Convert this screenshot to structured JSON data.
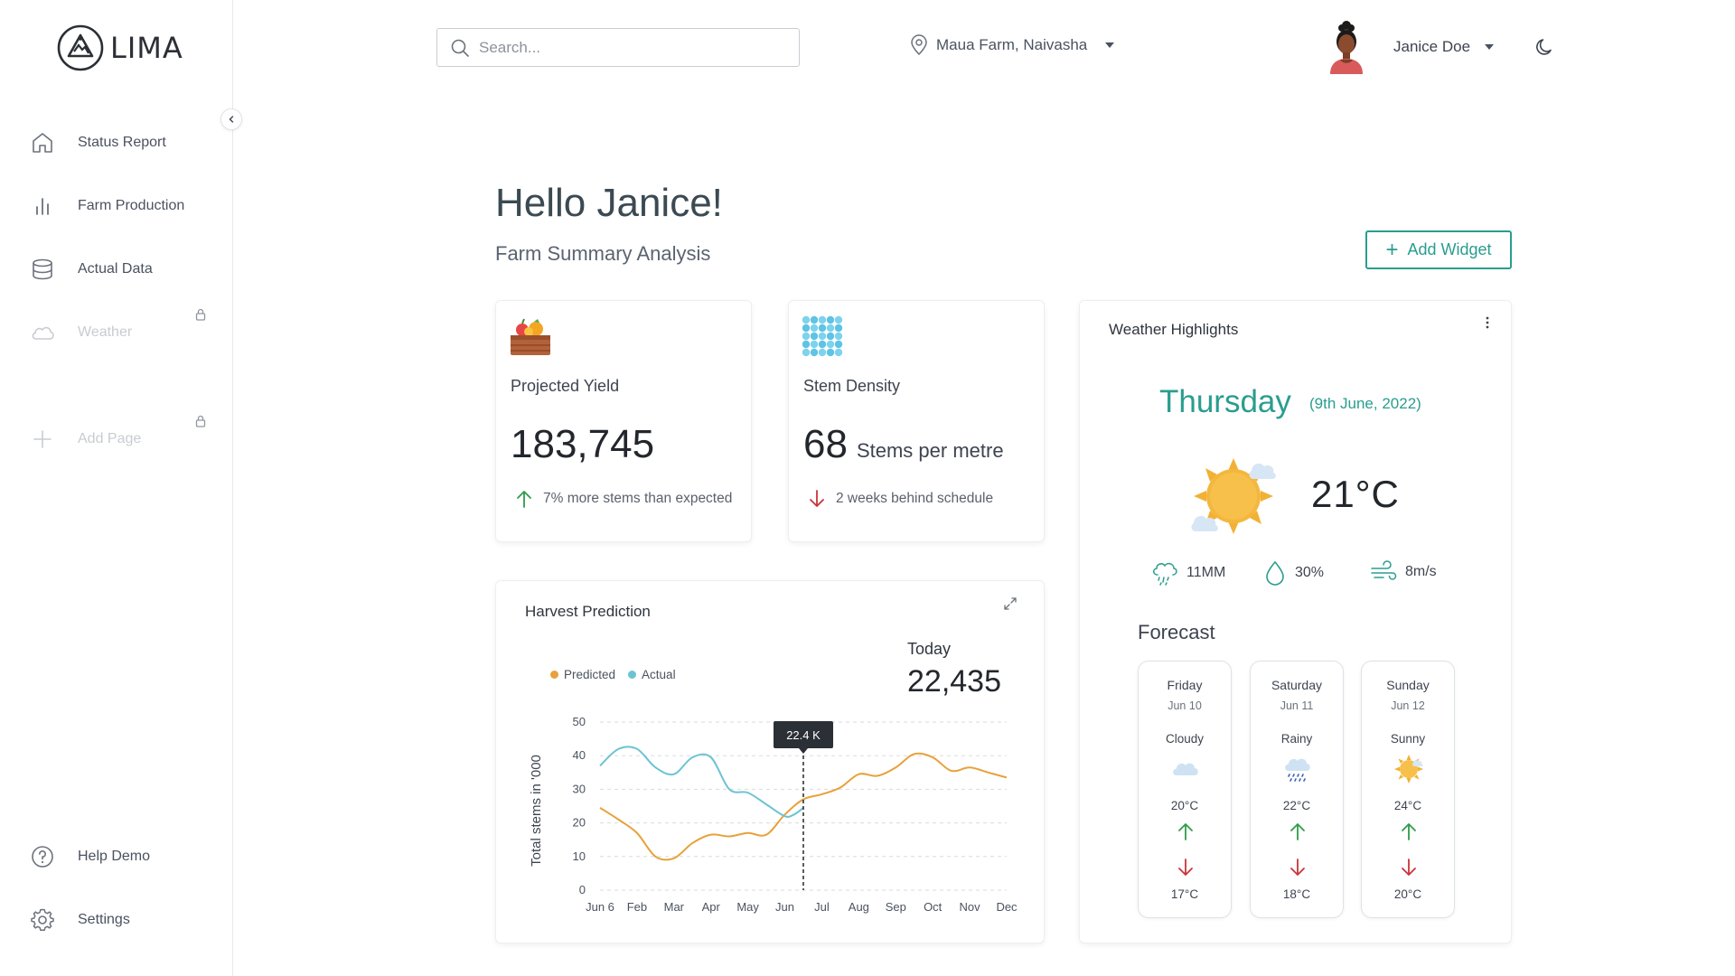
{
  "app": {
    "name": "LIMA"
  },
  "sidebar": {
    "items": [
      {
        "label": "Status Report",
        "icon": "home-icon",
        "locked": false
      },
      {
        "label": "Farm Production",
        "icon": "bar-chart-icon",
        "locked": false
      },
      {
        "label": "Actual Data",
        "icon": "database-icon",
        "locked": false
      },
      {
        "label": "Weather",
        "icon": "cloud-icon",
        "locked": true
      },
      {
        "label": "Add Page",
        "icon": "plus-icon",
        "locked": true
      }
    ],
    "bottom": [
      {
        "label": "Help Demo",
        "icon": "help-icon"
      },
      {
        "label": "Settings",
        "icon": "gear-icon"
      }
    ]
  },
  "header": {
    "search_placeholder": "Search...",
    "location": "Maua Farm, Naivasha",
    "user_name": "Janice Doe"
  },
  "main": {
    "greeting": "Hello Janice!",
    "subtitle": "Farm Summary Analysis",
    "add_widget_label": "Add Widget"
  },
  "kpis": [
    {
      "label": "Projected Yield",
      "value": "183,745",
      "unit": "",
      "note": "7% more stems than expected",
      "trend": "up",
      "icon": "fruit-basket-icon"
    },
    {
      "label": "Stem Density",
      "value": "68",
      "unit": "Stems per metre",
      "note": "2 weeks behind schedule",
      "trend": "down",
      "icon": "dot-grid-icon"
    }
  ],
  "harvest": {
    "title": "Harvest Prediction",
    "today_label": "Today",
    "today_value": "22,435",
    "tooltip": "22.4 K"
  },
  "chart_data": {
    "type": "line",
    "categories": [
      "Jun 6",
      "Feb",
      "Mar",
      "Apr",
      "May",
      "Jun",
      "Jul",
      "Aug",
      "Sep",
      "Oct",
      "Nov",
      "Dec"
    ],
    "ylabel": "Total stems in '000",
    "ylim": [
      0,
      50
    ],
    "yticks": [
      0,
      10,
      20,
      30,
      40,
      50
    ],
    "grid": true,
    "legend_position": "top-left",
    "marker_category_index": 5.5,
    "series": [
      {
        "name": "Predicted",
        "color": "#e8a13a",
        "x": [
          0,
          0.5,
          1,
          1.5,
          2,
          2.5,
          3,
          3.5,
          4,
          4.5,
          5,
          5.5,
          6,
          6.5,
          7,
          7.5,
          8,
          8.5,
          9,
          9.5,
          10,
          10.5,
          11
        ],
        "values": [
          24.5,
          21,
          17,
          10,
          9.5,
          14,
          16.5,
          16,
          17,
          16.5,
          22.5,
          27,
          28.5,
          30.5,
          34.5,
          34,
          36.5,
          40.5,
          39.5,
          35.5,
          36.5,
          35,
          33.5
        ]
      },
      {
        "name": "Actual",
        "color": "#6cc3d3",
        "x": [
          0,
          0.5,
          1,
          1.5,
          2,
          2.5,
          3,
          3.5,
          4,
          4.5,
          5,
          5.25,
          5.5
        ],
        "values": [
          37,
          42,
          42,
          36.5,
          34.5,
          39.5,
          39.5,
          30,
          29,
          25.5,
          22,
          22.5,
          24.5
        ]
      }
    ]
  },
  "weather": {
    "title": "Weather Highlights",
    "day": "Thursday",
    "date": "(9th June, 2022)",
    "temp": "21°C",
    "icon": "sun-cloud-icon",
    "metrics": [
      {
        "value": "11MM",
        "icon": "rain-icon"
      },
      {
        "value": "30%",
        "icon": "droplet-icon"
      },
      {
        "value": "8m/s",
        "icon": "wind-icon"
      }
    ],
    "forecast_title": "Forecast",
    "forecast": [
      {
        "day": "Friday",
        "date": "Jun 10",
        "condition": "Cloudy",
        "high": "20°C",
        "low": "17°C",
        "icon": "cloud-icon"
      },
      {
        "day": "Saturday",
        "date": "Jun 11",
        "condition": "Rainy",
        "high": "22°C",
        "low": "18°C",
        "icon": "rain-cloud-icon"
      },
      {
        "day": "Sunday",
        "date": "Jun 12",
        "condition": "Sunny",
        "high": "24°C",
        "low": "20°C",
        "icon": "sun-icon"
      }
    ]
  },
  "colors": {
    "accent": "#2a9d8f",
    "up": "#2e9d4a",
    "down": "#c9343a",
    "predicted": "#e8a13a",
    "actual": "#6cc3d3"
  }
}
